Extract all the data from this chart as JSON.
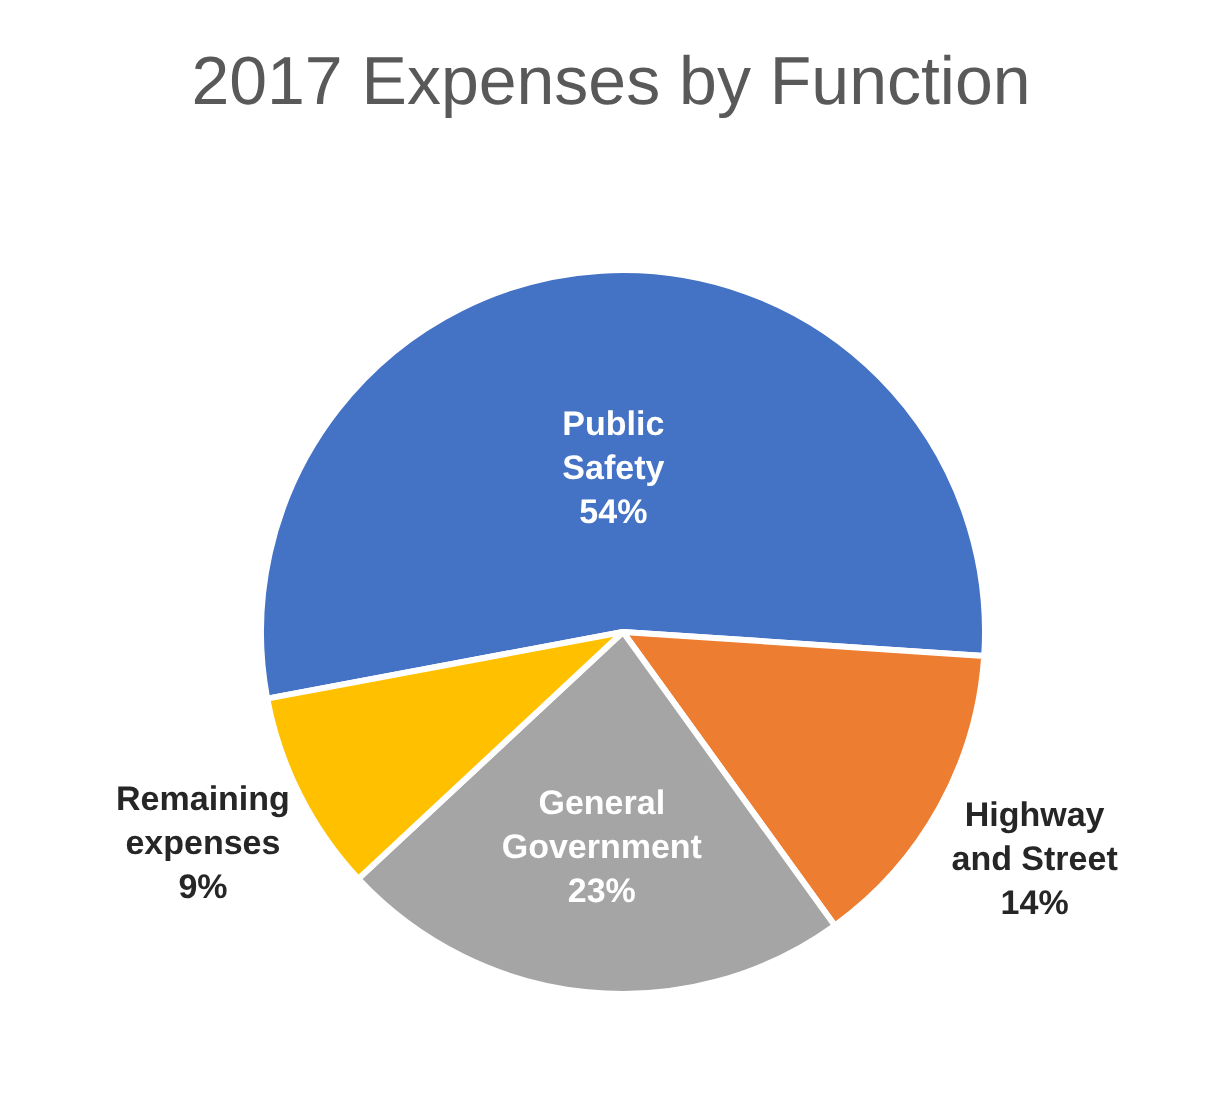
{
  "chart_data": {
    "type": "pie",
    "title": "2017 Expenses by Function",
    "categories": [
      "Public Safety",
      "Highway and Street",
      "General Government",
      "Remaining expenses"
    ],
    "values": [
      54,
      14,
      23,
      9
    ],
    "colors": [
      "#4472c4",
      "#ed7d31",
      "#a5a5a5",
      "#ffc000"
    ],
    "value_labels": [
      "54%",
      "14%",
      "23%",
      "9%"
    ],
    "legend": false
  }
}
